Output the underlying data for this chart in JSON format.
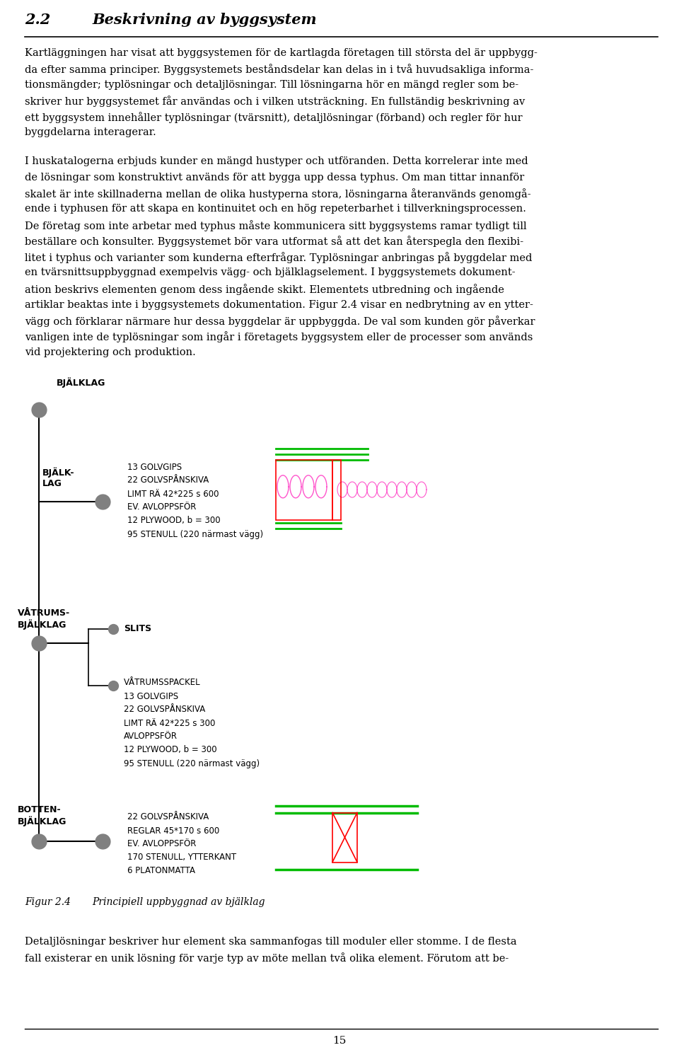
{
  "body_text_para1": [
    "Kartläggningen har visat att byggsystemen för de kartlagda företagen till största del är uppbygg-",
    "da efter samma principer. Byggsystemets beståndsdelar kan delas in i två huvudsakliga informa-",
    "tionsmängder; typlösningar och detaljlösningar. Till lösningarna hör en mängd regler som be-",
    "skriver hur byggsystemet får användas och i vilken utsträckning. En fullständig beskrivning av",
    "ett byggsystem innehåller typlösningar (tvärsnitt), detaljlösningar (förband) och regler för hur",
    "byggdelarna interagerar."
  ],
  "body_text_para2": [
    "I huskatalogerna erbjuds kunder en mängd hustyper och utföranden. Detta korrelerar inte med",
    "de lösningar som konstruktivt används för att bygga upp dessa typhus. Om man tittar innanför",
    "skalet är inte skillnaderna mellan de olika hustyperna stora, lösningarna återanvänds genomgå-",
    "ende i typhusen för att skapa en kontinuitet och en hög repeterbarhet i tillverkningsprocessen.",
    "De företag som inte arbetar med typhus måste kommunicera sitt byggsystems ramar tydligt till",
    "beställare och konsulter. Byggsystemet bör vara utformat så att det kan återspegla den flexibi-",
    "litet i typhus och varianter som kunderna efterfrågar. Typlösningar anbringas på byggdelar med",
    "en tvärsnittsuppbyggnad exempelvis vägg- och bjälklagselement. I byggsystemets dokument-",
    "ation beskrivs elementen genom dess ingående skikt. Elementets utbredning och ingående",
    "artiklar beaktas inte i byggsystemets dokumentation. Figur 2.4 visar en nedbrytning av en ytter-",
    "vägg och förklarar närmare hur dessa byggdelar är uppbyggda. De val som kunden gör påverkar",
    "vanligen inte de typlösningar som ingår i företagets byggsystem eller de processer som används",
    "vid projektering och produktion."
  ],
  "caption_text": "Figur 2.4        Principiell uppbyggnad av bjälklag",
  "bottom_text": [
    "Detaljlösningar beskriver hur element ska sammanfogas till moduler eller stomme. I de flesta",
    "fall existerar en unik lösning för varje typ av möte mellan två olika element. Förutom att be-"
  ],
  "page_number": "15",
  "bjalklag_text": [
    "13 GOLVGIPS",
    "22 GOLVSPÅNSKIVA",
    "LIMT RÄ 42*225 s 600",
    "EV. AVLOPPSFÖR",
    "12 PLYWOOD, b = 300",
    "95 STENULL (220 närmast vägg)"
  ],
  "vatrum_text": [
    "VÅTRUMSSPACKEL",
    "13 GOLVGIPS",
    "22 GOLVSPÅNSKIVA",
    "LIMT RÄ 42*225 s 300",
    "AVLOPPSFÖR",
    "12 PLYWOOD, b = 300",
    "95 STENULL (220 närmast vägg)"
  ],
  "botten_text": [
    "22 GOLVSPÅNSKIVA",
    "REGLAR 45*170 s 600",
    "EV. AVLOPPSFÖR",
    "170 STENULL, YTTERKANT",
    "6 PLATONMATTA"
  ]
}
